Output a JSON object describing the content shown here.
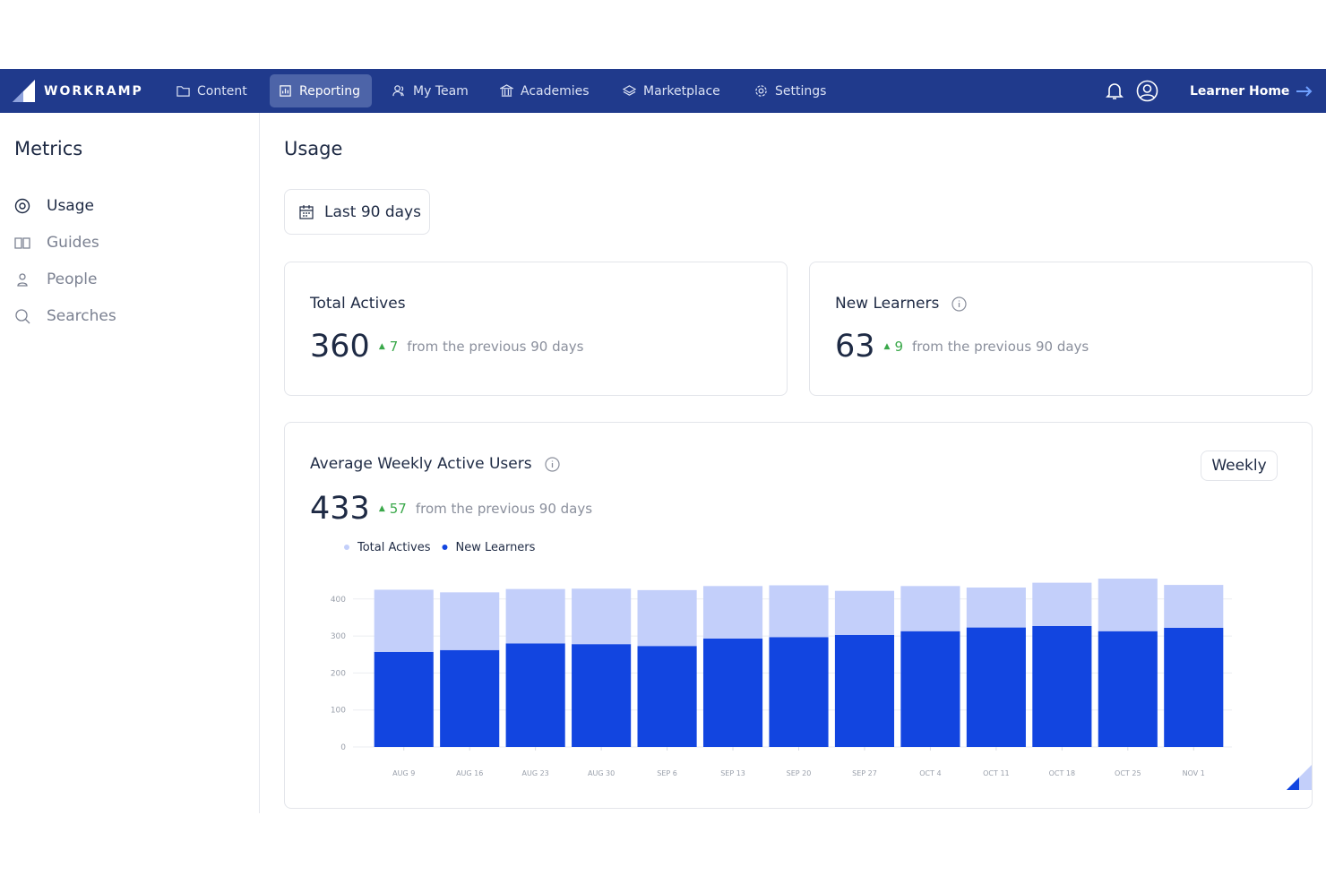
{
  "nav": {
    "logo": "WORKRAMP",
    "items": [
      "Content",
      "Reporting",
      "My Team",
      "Academies",
      "Marketplace",
      "Settings"
    ],
    "learner_home": "Learner Home"
  },
  "sidebar": {
    "title": "Metrics",
    "items": [
      "Usage",
      "Guides",
      "People",
      "Searches"
    ]
  },
  "page_title": "Usage",
  "date_filter": "Last 90 days",
  "cards": [
    {
      "title": "Total Actives",
      "value": 360,
      "change": 7,
      "note": "from the previous 90 days"
    },
    {
      "title": "New Learners",
      "value": 63,
      "change": 9,
      "note": "from the previous 90 days"
    }
  ],
  "chart_card": {
    "title": "Average Weekly Active Users",
    "value": 433,
    "change": 57,
    "note": "from the previous 90 days",
    "interval": "Weekly"
  },
  "chart_data": {
    "type": "stacked_bar",
    "categories": [
      "AUG 9",
      "AUG 16",
      "AUG 23",
      "AUG 30",
      "SEP 6",
      "SEP 13",
      "SEP 20",
      "SEP 27",
      "OCT 4",
      "OCT 11",
      "OCT 18",
      "OCT 25",
      "NOV 1"
    ],
    "series": [
      {
        "name": "Total Actives",
        "color": "#c3cffa",
        "values": [
          168,
          156,
          147,
          150,
          151,
          142,
          140,
          119,
          122,
          108,
          117,
          142,
          116
        ]
      },
      {
        "name": "New Learners",
        "color": "#1245e0",
        "values": [
          257,
          262,
          280,
          278,
          273,
          293,
          297,
          303,
          313,
          323,
          327,
          313,
          322
        ]
      }
    ],
    "ylim": [
      0,
      460
    ],
    "yticks": [
      0,
      100,
      200,
      300,
      400
    ],
    "grid": true
  }
}
